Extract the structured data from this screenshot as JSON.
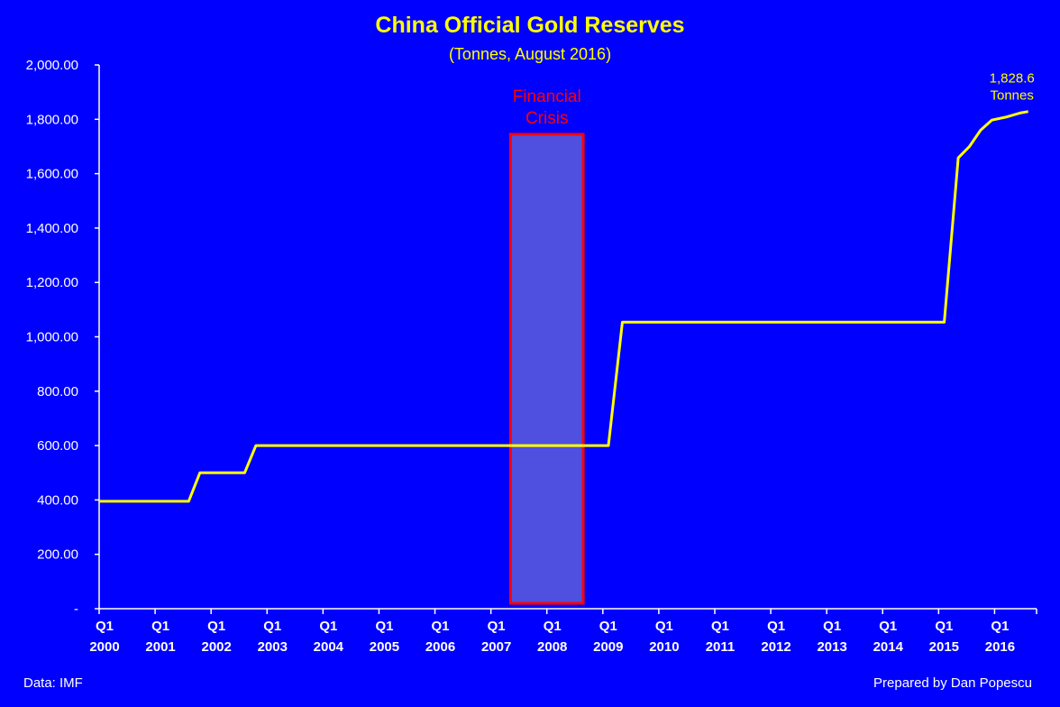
{
  "chart_data": {
    "type": "line",
    "title": "China Official Gold Reserves",
    "subtitle": "(Tonnes, August 2016)",
    "ylim": [
      0,
      2000
    ],
    "y_ticks": [
      {
        "value": 0,
        "label": "-"
      },
      {
        "value": 200,
        "label": "200.00"
      },
      {
        "value": 400,
        "label": "400.00"
      },
      {
        "value": 600,
        "label": "600.00"
      },
      {
        "value": 800,
        "label": "800.00"
      },
      {
        "value": 1000,
        "label": "1,000.00"
      },
      {
        "value": 1200,
        "label": "1,200.00"
      },
      {
        "value": 1400,
        "label": "1,400.00"
      },
      {
        "value": 1600,
        "label": "1,600.00"
      },
      {
        "value": 1800,
        "label": "1,800.00"
      },
      {
        "value": 2000,
        "label": "2,000.00"
      }
    ],
    "x_range": [
      2000.0,
      2016.75
    ],
    "x_ticks": [
      {
        "value": 2000,
        "line1": "Q1",
        "line2": "2000"
      },
      {
        "value": 2001,
        "line1": "Q1",
        "line2": "2001"
      },
      {
        "value": 2002,
        "line1": "Q1",
        "line2": "2002"
      },
      {
        "value": 2003,
        "line1": "Q1",
        "line2": "2003"
      },
      {
        "value": 2004,
        "line1": "Q1",
        "line2": "2004"
      },
      {
        "value": 2005,
        "line1": "Q1",
        "line2": "2005"
      },
      {
        "value": 2006,
        "line1": "Q1",
        "line2": "2006"
      },
      {
        "value": 2007,
        "line1": "Q1",
        "line2": "2007"
      },
      {
        "value": 2008,
        "line1": "Q1",
        "line2": "2008"
      },
      {
        "value": 2009,
        "line1": "Q1",
        "line2": "2009"
      },
      {
        "value": 2010,
        "line1": "Q1",
        "line2": "2010"
      },
      {
        "value": 2011,
        "line1": "Q1",
        "line2": "2011"
      },
      {
        "value": 2012,
        "line1": "Q1",
        "line2": "2012"
      },
      {
        "value": 2013,
        "line1": "Q1",
        "line2": "2013"
      },
      {
        "value": 2014,
        "line1": "Q1",
        "line2": "2014"
      },
      {
        "value": 2015,
        "line1": "Q1",
        "line2": "2015"
      },
      {
        "value": 2016,
        "line1": "Q1",
        "line2": "2016"
      }
    ],
    "series": [
      {
        "color": "#FFFF00",
        "points": [
          [
            2000.0,
            395
          ],
          [
            2001.6,
            395
          ],
          [
            2001.8,
            500
          ],
          [
            2002.6,
            500
          ],
          [
            2002.8,
            600
          ],
          [
            2009.1,
            600
          ],
          [
            2009.35,
            1054
          ],
          [
            2015.1,
            1054
          ],
          [
            2015.35,
            1658
          ],
          [
            2015.55,
            1700
          ],
          [
            2015.75,
            1760
          ],
          [
            2015.95,
            1797
          ],
          [
            2016.2,
            1808
          ],
          [
            2016.45,
            1823
          ],
          [
            2016.6,
            1828.6
          ]
        ]
      }
    ],
    "highlight": {
      "label_line1": "Financial",
      "label_line2": "Crisis",
      "x_start": 2007.35,
      "x_end": 2008.65,
      "y_top": 1745,
      "fill": "#5050E0",
      "stroke": "#FF0000",
      "label_color": "#FF0000"
    },
    "end_annotation": {
      "line1": "1,828.6",
      "line2": "Tonnes",
      "color": "#FFFF00"
    },
    "source": "Data: IMF",
    "credit": "Prepared by Dan Popescu",
    "colors": {
      "background": "#0000FF",
      "title": "#FFFF00",
      "text": "#FFFFFF",
      "axis": "#FFFFFF"
    }
  }
}
